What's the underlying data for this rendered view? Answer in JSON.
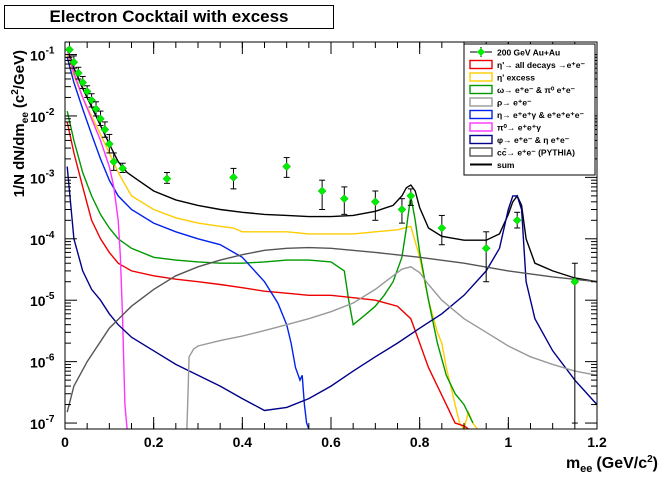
{
  "chart_data": {
    "type": "line",
    "title": "Electron Cocktail with excess",
    "xlabel": "m",
    "xlabel_sub": "ee",
    "xlabel_unit": "(GeV/c",
    "xlabel_unit_sup": "2",
    "xlabel_unit_end": ")",
    "ylabel": "1/N dN/dm",
    "ylabel_sub": "ee",
    "ylabel_unit": "(c",
    "ylabel_unit_sup": "2",
    "ylabel_unit_end": "/GeV)",
    "xlim": [
      0,
      1.2
    ],
    "ylim": [
      8e-08,
      0.16
    ],
    "yscale": "log",
    "x_ticks": [
      "0",
      "0.2",
      "0.4",
      "0.6",
      "0.8",
      "1",
      "1.2"
    ],
    "y_ticks": [
      {
        "base": "10",
        "exp": "-7",
        "value": 1e-07
      },
      {
        "base": "10",
        "exp": "-6",
        "value": 1e-06
      },
      {
        "base": "10",
        "exp": "-5",
        "value": 1e-05
      },
      {
        "base": "10",
        "exp": "-4",
        "value": 0.0001
      },
      {
        "base": "10",
        "exp": "-3",
        "value": 0.001
      },
      {
        "base": "10",
        "exp": "-2",
        "value": 0.01
      },
      {
        "base": "10",
        "exp": "-1",
        "value": 0.1
      }
    ],
    "legend_position": "top-right",
    "legend": [
      {
        "label": "200 GeV Au+Au",
        "color": "#00ee00",
        "style": "marker"
      },
      {
        "label": "η'→ all decays →e⁺e⁻",
        "color": "#ee0000",
        "style": "box"
      },
      {
        "label": "η' excess",
        "color": "#ffcc00",
        "style": "box"
      },
      {
        "label": "ω→ e⁺e⁻ & π⁰ e⁺e⁻",
        "color": "#009900",
        "style": "box"
      },
      {
        "label": "ρ→ e⁺e⁻",
        "color": "#999999",
        "style": "box"
      },
      {
        "label": "η→ e⁺e⁺γ & e⁺e⁺e⁺e⁻",
        "color": "#0022ee",
        "style": "box"
      },
      {
        "label": "π⁰→ e⁺e⁺γ",
        "color": "#ff33ff",
        "style": "box"
      },
      {
        "label": "φ→ e⁺e⁻ & η e⁺e⁻",
        "color": "#000088",
        "style": "box"
      },
      {
        "label": "cc̄→ e⁺e⁻ (PYTHIA)",
        "color": "#555555",
        "style": "box"
      },
      {
        "label": "sum",
        "color": "#000000",
        "style": "line"
      }
    ],
    "data_points": [
      {
        "x": 0.01,
        "y": 0.12,
        "err": [
          0.09,
          0.16
        ]
      },
      {
        "x": 0.02,
        "y": 0.075,
        "err": [
          0.06,
          0.095
        ]
      },
      {
        "x": 0.03,
        "y": 0.05,
        "err": [
          0.04,
          0.062
        ]
      },
      {
        "x": 0.04,
        "y": 0.035,
        "err": [
          0.028,
          0.044
        ]
      },
      {
        "x": 0.05,
        "y": 0.025,
        "err": [
          0.02,
          0.031
        ]
      },
      {
        "x": 0.06,
        "y": 0.018,
        "err": [
          0.014,
          0.023
        ]
      },
      {
        "x": 0.07,
        "y": 0.013,
        "err": [
          0.01,
          0.017
        ]
      },
      {
        "x": 0.08,
        "y": 0.009,
        "err": [
          0.007,
          0.012
        ]
      },
      {
        "x": 0.09,
        "y": 0.006,
        "err": [
          0.0045,
          0.008
        ]
      },
      {
        "x": 0.1,
        "y": 0.0035,
        "err": [
          0.0025,
          0.005
        ]
      },
      {
        "x": 0.11,
        "y": 0.0018,
        "err": [
          0.0013,
          0.0025
        ]
      },
      {
        "x": 0.13,
        "y": 0.0014,
        "err": [
          0.0012,
          0.0017
        ]
      },
      {
        "x": 0.23,
        "y": 0.00095,
        "err": [
          0.0008,
          0.0012
        ]
      },
      {
        "x": 0.38,
        "y": 0.001,
        "err": [
          0.00065,
          0.0014
        ]
      },
      {
        "x": 0.5,
        "y": 0.0015,
        "err": [
          0.001,
          0.0021
        ]
      },
      {
        "x": 0.58,
        "y": 0.0006,
        "err": [
          0.0003,
          0.0009
        ]
      },
      {
        "x": 0.63,
        "y": 0.00045,
        "err": [
          0.00025,
          0.0007
        ]
      },
      {
        "x": 0.7,
        "y": 0.0004,
        "err": [
          0.0002,
          0.0006
        ]
      },
      {
        "x": 0.76,
        "y": 0.0003,
        "err": [
          0.00018,
          0.00045
        ]
      },
      {
        "x": 0.78,
        "y": 0.0005,
        "err": [
          0.00035,
          0.00065
        ]
      },
      {
        "x": 0.85,
        "y": 0.00015,
        "err": [
          8e-05,
          0.00024
        ]
      },
      {
        "x": 0.95,
        "y": 7e-05,
        "err": [
          2e-05,
          0.00013
        ]
      },
      {
        "x": 1.02,
        "y": 0.0002,
        "err": [
          0.00015,
          0.00027
        ]
      },
      {
        "x": 1.15,
        "y": 2e-05,
        "err": [
          1e-07,
          4e-05
        ]
      }
    ],
    "series": [
      {
        "color": "#000000",
        "x": [
          0.005,
          0.02,
          0.04,
          0.06,
          0.08,
          0.1,
          0.12,
          0.14,
          0.16,
          0.2,
          0.25,
          0.3,
          0.35,
          0.4,
          0.45,
          0.5,
          0.55,
          0.6,
          0.65,
          0.7,
          0.74,
          0.76,
          0.77,
          0.78,
          0.79,
          0.8,
          0.82,
          0.85,
          0.9,
          0.95,
          0.98,
          1.0,
          1.01,
          1.02,
          1.03,
          1.04,
          1.06,
          1.1,
          1.15,
          1.2
        ],
        "y": [
          0.13,
          0.06,
          0.028,
          0.014,
          0.007,
          0.0035,
          0.0018,
          0.0012,
          0.00095,
          0.0006,
          0.00043,
          0.00035,
          0.0003,
          0.00027,
          0.00025,
          0.00024,
          0.00023,
          0.00023,
          0.00024,
          0.00028,
          0.00035,
          0.0005,
          0.00068,
          0.00075,
          0.0006,
          0.00032,
          0.00015,
          0.00011,
          9.5e-05,
          9.5e-05,
          0.00012,
          0.00025,
          0.0004,
          0.0005,
          0.00035,
          0.0001,
          4e-05,
          3e-05,
          2.3e-05,
          2e-05
        ]
      },
      {
        "color": "#ffcc00",
        "x": [
          0.005,
          0.02,
          0.04,
          0.06,
          0.08,
          0.1,
          0.12,
          0.15,
          0.2,
          0.25,
          0.3,
          0.35,
          0.38,
          0.4,
          0.45,
          0.5,
          0.55,
          0.6,
          0.65,
          0.7,
          0.75,
          0.78,
          0.8,
          0.82,
          0.84,
          0.85,
          0.86,
          0.87,
          0.88,
          0.89,
          0.9,
          0.91,
          0.92,
          0.93
        ],
        "y": [
          0.1,
          0.045,
          0.02,
          0.01,
          0.005,
          0.0025,
          0.0012,
          0.0005,
          0.0003,
          0.00022,
          0.00018,
          0.00016,
          0.00015,
          0.00013,
          0.00013,
          0.00013,
          0.00012,
          0.00012,
          0.00012,
          0.00013,
          0.00014,
          0.00016,
          5e-05,
          1e-05,
          3e-06,
          2e-06,
          8e-07,
          4e-07,
          2e-07,
          1e-07,
          8e-08,
          1.5e-07,
          1e-07,
          8e-08
        ]
      },
      {
        "color": "#009900",
        "x": [
          0.005,
          0.02,
          0.04,
          0.06,
          0.08,
          0.1,
          0.12,
          0.15,
          0.2,
          0.25,
          0.3,
          0.35,
          0.4,
          0.45,
          0.5,
          0.55,
          0.6,
          0.63,
          0.64,
          0.65,
          0.68,
          0.7,
          0.72,
          0.74,
          0.76,
          0.77,
          0.78,
          0.79,
          0.8,
          0.82,
          0.84,
          0.86,
          0.88,
          0.9,
          0.92
        ],
        "y": [
          0.012,
          0.004,
          0.0012,
          0.0005,
          0.00025,
          0.00015,
          0.0001,
          7e-05,
          5e-05,
          4.5e-05,
          4.2e-05,
          4e-05,
          4e-05,
          4.2e-05,
          4.5e-05,
          4.5e-05,
          4.2e-05,
          3e-05,
          1e-05,
          4e-06,
          6e-06,
          8e-06,
          1.2e-05,
          2e-05,
          5e-05,
          0.00015,
          0.0005,
          0.0002,
          6e-05,
          1e-05,
          2e-06,
          6e-07,
          3e-07,
          2e-07,
          1e-07
        ]
      },
      {
        "color": "#ee0000",
        "x": [
          0.005,
          0.02,
          0.04,
          0.06,
          0.08,
          0.1,
          0.12,
          0.15,
          0.2,
          0.25,
          0.3,
          0.35,
          0.4,
          0.45,
          0.5,
          0.55,
          0.6,
          0.65,
          0.7,
          0.75,
          0.78,
          0.8,
          0.82,
          0.84,
          0.86,
          0.88,
          0.9,
          0.91
        ],
        "y": [
          0.008,
          0.0025,
          0.0007,
          0.0002,
          0.0001,
          6e-05,
          4e-05,
          3e-05,
          2.5e-05,
          2.2e-05,
          2e-05,
          1.8e-05,
          1.6e-05,
          1.4e-05,
          1.3e-05,
          1.2e-05,
          1.2e-05,
          1.1e-05,
          1e-05,
          8e-06,
          5e-06,
          2e-06,
          8e-07,
          4e-07,
          2e-07,
          1e-07,
          9e-08,
          8e-08
        ]
      },
      {
        "color": "#0022ee",
        "x": [
          0.005,
          0.02,
          0.04,
          0.06,
          0.08,
          0.1,
          0.12,
          0.15,
          0.2,
          0.25,
          0.3,
          0.35,
          0.4,
          0.45,
          0.48,
          0.5,
          0.51,
          0.52,
          0.53,
          0.535,
          0.54,
          0.545,
          0.55
        ],
        "y": [
          0.09,
          0.035,
          0.013,
          0.005,
          0.002,
          0.0009,
          0.0005,
          0.0003,
          0.00018,
          0.00013,
          0.0001,
          8e-05,
          5e-05,
          2e-05,
          9e-06,
          4e-06,
          2e-06,
          8e-07,
          5e-07,
          6e-07,
          2e-07,
          1e-07,
          8e-08
        ]
      },
      {
        "color": "#ff33ff",
        "x": [
          0.005,
          0.02,
          0.04,
          0.06,
          0.08,
          0.1,
          0.11,
          0.12,
          0.125,
          0.13,
          0.135,
          0.14
        ],
        "y": [
          0.12,
          0.05,
          0.02,
          0.009,
          0.004,
          0.0015,
          0.0007,
          0.0002,
          5e-05,
          5e-06,
          2e-07,
          8e-08
        ]
      },
      {
        "color": "#000088",
        "x": [
          0.005,
          0.02,
          0.04,
          0.06,
          0.08,
          0.1,
          0.12,
          0.15,
          0.2,
          0.25,
          0.3,
          0.35,
          0.4,
          0.45,
          0.5,
          0.55,
          0.6,
          0.65,
          0.7,
          0.75,
          0.8,
          0.85,
          0.9,
          0.95,
          0.98,
          1.0,
          1.01,
          1.02,
          1.03,
          1.04,
          1.06,
          1.1,
          1.15,
          1.2
        ],
        "y": [
          0.0015,
          0.0001,
          3e-05,
          1.5e-05,
          1e-05,
          6e-06,
          4e-06,
          2.5e-06,
          1.5e-06,
          9e-07,
          6e-07,
          4e-07,
          2.5e-07,
          1.6e-07,
          1.8e-07,
          2.5e-07,
          4e-07,
          7e-07,
          1.2e-06,
          2e-06,
          3.5e-06,
          6e-06,
          1.2e-05,
          3e-05,
          7e-05,
          0.0003,
          0.0005,
          0.0005,
          0.0003,
          2e-05,
          5e-06,
          1.5e-06,
          5e-07,
          2e-07
        ]
      },
      {
        "color": "#999999",
        "x": [
          0.275,
          0.28,
          0.29,
          0.3,
          0.35,
          0.4,
          0.45,
          0.5,
          0.55,
          0.6,
          0.65,
          0.7,
          0.74,
          0.76,
          0.78,
          0.8,
          0.82,
          0.85,
          0.9,
          0.95,
          1.0,
          1.05,
          1.1,
          1.15,
          1.2
        ],
        "y": [
          8e-08,
          1.2e-06,
          1.6e-06,
          1.8e-06,
          2.2e-06,
          2.6e-06,
          3.2e-06,
          4e-06,
          5e-06,
          6.5e-06,
          9e-06,
          1.5e-05,
          2.5e-05,
          3.2e-05,
          3.5e-05,
          2.8e-05,
          1.8e-05,
          1e-05,
          5e-06,
          3e-06,
          1.8e-06,
          1.2e-06,
          9e-07,
          7e-07,
          6e-07
        ]
      },
      {
        "color": "#555555",
        "x": [
          0.005,
          0.02,
          0.05,
          0.1,
          0.15,
          0.2,
          0.25,
          0.3,
          0.35,
          0.4,
          0.45,
          0.5,
          0.55,
          0.6,
          0.7,
          0.8,
          0.9,
          1.0,
          1.1,
          1.2
        ],
        "y": [
          1.5e-07,
          4e-07,
          1e-06,
          3.5e-06,
          8e-06,
          1.5e-05,
          2.5e-05,
          3.5e-05,
          4.5e-05,
          5.5e-05,
          6.5e-05,
          7e-05,
          7.2e-05,
          7e-05,
          6e-05,
          5e-05,
          4e-05,
          3e-05,
          2.4e-05,
          2e-05
        ]
      }
    ]
  }
}
